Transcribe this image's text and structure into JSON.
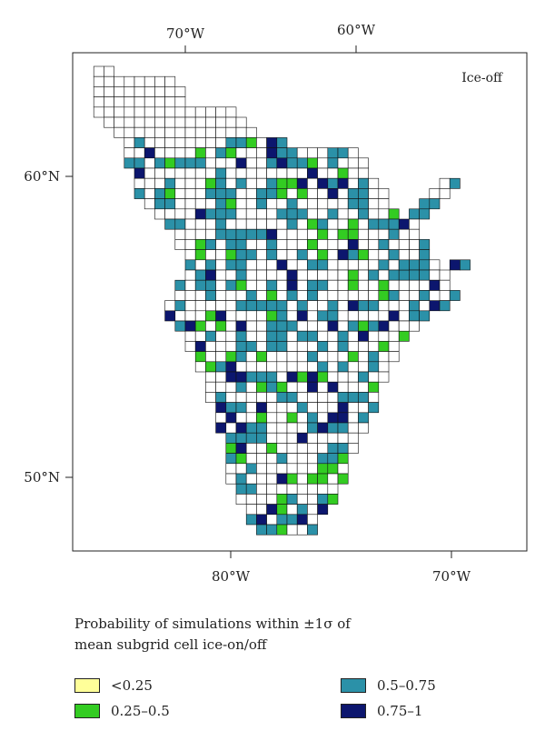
{
  "map": {
    "panel_label": "Ice-off",
    "top_axis_ticks": [
      "70°W",
      "60°W"
    ],
    "bottom_axis_ticks": [
      "80°W",
      "70°W"
    ],
    "left_axis_ticks": [
      "60°N",
      "50°N"
    ],
    "colors": {
      "none": "#ffffff",
      "lt025": "#ffff99",
      "c025_05": "#33cc22",
      "c05_075": "#2b91a8",
      "c075_1": "#0c166e"
    }
  },
  "legend": {
    "title_line1": "Probability of simulations within ±1σ of",
    "title_line2": "mean subgrid cell ice-on/off",
    "items": [
      {
        "label": "<0.25",
        "color": "#ffff99"
      },
      {
        "label": "0.25–0.5",
        "color": "#33cc22"
      },
      {
        "label": "0.5–0.75",
        "color": "#2b91a8"
      },
      {
        "label": "0.75–1",
        "color": "#0c166e"
      }
    ]
  }
}
